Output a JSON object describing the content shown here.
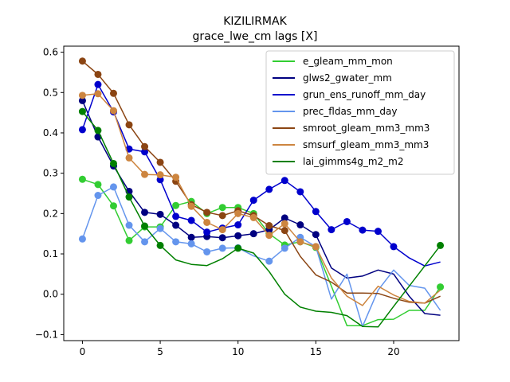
{
  "chart_data": {
    "type": "line",
    "title": "KIZILIRMAK",
    "subtitle": "grace_lwe_cm lags [X]",
    "xlabel": "",
    "ylabel": "",
    "xlim": [
      -1.2,
      24.2
    ],
    "ylim": [
      -0.115,
      0.615
    ],
    "xticks": [
      0,
      5,
      10,
      15,
      20
    ],
    "yticks": [
      -0.1,
      0.0,
      0.1,
      0.2,
      0.3,
      0.4,
      0.5,
      0.6
    ],
    "ytick_labels": [
      "−0.1",
      "0.0",
      "0.1",
      "0.2",
      "0.3",
      "0.4",
      "0.5",
      "0.6"
    ],
    "grid": false,
    "legend_position": "upper-right",
    "x": [
      0,
      1,
      2,
      3,
      4,
      5,
      6,
      7,
      8,
      9,
      10,
      11,
      12,
      13,
      14,
      15,
      16,
      17,
      18,
      19,
      20,
      21,
      22,
      23
    ],
    "series": [
      {
        "name": "e_gleam_mm_mon",
        "color": "#32cd32",
        "values": [
          0.285,
          0.272,
          0.219,
          0.133,
          0.167,
          0.167,
          0.22,
          0.23,
          0.2,
          0.215,
          0.215,
          0.2,
          0.15,
          0.122,
          0.13,
          0.116,
          0.02,
          -0.078,
          -0.078,
          -0.063,
          -0.062,
          -0.04,
          -0.04,
          0.018
        ],
        "markers": [
          0,
          1,
          2,
          3,
          4,
          5,
          6,
          7,
          8,
          9,
          10,
          11,
          12,
          13,
          14,
          15,
          23
        ]
      },
      {
        "name": "glws2_gwater_mm",
        "color": "#000080",
        "values": [
          0.48,
          0.39,
          0.318,
          0.255,
          0.203,
          0.198,
          0.171,
          0.141,
          0.143,
          0.14,
          0.145,
          0.15,
          0.16,
          0.189,
          0.172,
          0.148,
          0.065,
          0.04,
          0.045,
          0.06,
          0.05,
          -0.005,
          -0.048,
          -0.052
        ],
        "markers": [
          0,
          1,
          2,
          3,
          4,
          5,
          6,
          7,
          8,
          9,
          10,
          11,
          12,
          13,
          14,
          15
        ]
      },
      {
        "name": "grun_ens_runoff_mm_day",
        "color": "#0000cd",
        "values": [
          0.408,
          0.52,
          0.452,
          0.36,
          0.353,
          0.284,
          0.193,
          0.183,
          0.154,
          0.164,
          0.172,
          0.233,
          0.26,
          0.282,
          0.254,
          0.205,
          0.16,
          0.18,
          0.159,
          0.156,
          0.118,
          0.09,
          0.07,
          0.08
        ],
        "markers": [
          0,
          1,
          2,
          3,
          4,
          5,
          6,
          7,
          8,
          9,
          10,
          11,
          12,
          13,
          14,
          15,
          16,
          17,
          18,
          19,
          20
        ]
      },
      {
        "name": "prec_fldas_mm_day",
        "color": "#6495ed",
        "values": [
          0.137,
          0.245,
          0.266,
          0.171,
          0.13,
          0.163,
          0.13,
          0.125,
          0.105,
          0.114,
          0.115,
          0.095,
          0.082,
          0.114,
          0.141,
          0.118,
          -0.012,
          0.05,
          -0.08,
          0.01,
          0.06,
          0.022,
          0.015,
          -0.04
        ],
        "markers": [
          0,
          1,
          2,
          3,
          4,
          5,
          6,
          7,
          8,
          9,
          10,
          12,
          13,
          14,
          15
        ]
      },
      {
        "name": "smroot_gleam_mm3_mm3",
        "color": "#8b4513",
        "values": [
          0.578,
          0.545,
          0.498,
          0.42,
          0.366,
          0.327,
          0.28,
          0.222,
          0.203,
          0.195,
          0.207,
          0.195,
          0.17,
          0.158,
          0.094,
          0.048,
          0.03,
          0.003,
          0.003,
          0.002,
          -0.01,
          -0.02,
          -0.022,
          -0.005
        ],
        "markers": [
          0,
          1,
          2,
          3,
          4,
          5,
          6,
          7,
          8,
          9,
          10,
          11,
          12,
          13
        ]
      },
      {
        "name": "smsurf_gleam_mm3_mm3",
        "color": "#cd853f",
        "values": [
          0.493,
          0.497,
          0.455,
          0.338,
          0.297,
          0.296,
          0.29,
          0.218,
          0.178,
          0.16,
          0.2,
          0.19,
          0.146,
          0.175,
          0.13,
          0.118,
          0.04,
          -0.005,
          -0.028,
          0.02,
          -0.002,
          -0.018,
          -0.022,
          0.01
        ],
        "markers": [
          0,
          1,
          2,
          3,
          4,
          5,
          6,
          7,
          8,
          9,
          10,
          11,
          12,
          13,
          14,
          15
        ]
      },
      {
        "name": "lai_gimms4g_m2_m2",
        "color": "#008000",
        "values": [
          0.453,
          0.406,
          0.324,
          0.241,
          0.169,
          0.121,
          0.085,
          0.074,
          0.071,
          0.088,
          0.114,
          0.102,
          0.056,
          0.0,
          -0.032,
          -0.042,
          -0.045,
          -0.053,
          -0.08,
          -0.081,
          -0.03,
          0.02,
          0.07,
          0.121
        ],
        "markers": [
          0,
          1,
          2,
          3,
          4,
          5,
          10,
          23
        ]
      }
    ]
  }
}
